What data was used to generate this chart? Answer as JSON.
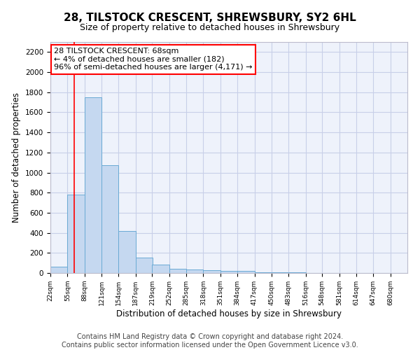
{
  "title": "28, TILSTOCK CRESCENT, SHREWSBURY, SY2 6HL",
  "subtitle": "Size of property relative to detached houses in Shrewsbury",
  "xlabel": "Distribution of detached houses by size in Shrewsbury",
  "ylabel": "Number of detached properties",
  "footer_line1": "Contains HM Land Registry data © Crown copyright and database right 2024.",
  "footer_line2": "Contains public sector information licensed under the Open Government Licence v3.0.",
  "bin_edges": [
    22,
    55,
    88,
    121,
    154,
    187,
    219,
    252,
    285,
    318,
    351,
    384,
    417,
    450,
    483,
    516,
    548,
    581,
    614,
    647,
    680
  ],
  "bar_heights": [
    60,
    780,
    1750,
    1075,
    420,
    155,
    85,
    40,
    35,
    30,
    20,
    20,
    10,
    5,
    5,
    3,
    3,
    2,
    2,
    2
  ],
  "bar_color": "#c5d8f0",
  "bar_edge_color": "#6aaad4",
  "red_line_x": 68,
  "ylim": [
    0,
    2300
  ],
  "yticks": [
    0,
    200,
    400,
    600,
    800,
    1000,
    1200,
    1400,
    1600,
    1800,
    2000,
    2200
  ],
  "annotation_line1": "28 TILSTOCK CRESCENT: 68sqm",
  "annotation_line2": "← 4% of detached houses are smaller (182)",
  "annotation_line3": "96% of semi-detached houses are larger (4,171) →",
  "background_color": "#eef2fb",
  "grid_color": "#c8cfe8",
  "title_fontsize": 11,
  "subtitle_fontsize": 9,
  "footer_fontsize": 7
}
